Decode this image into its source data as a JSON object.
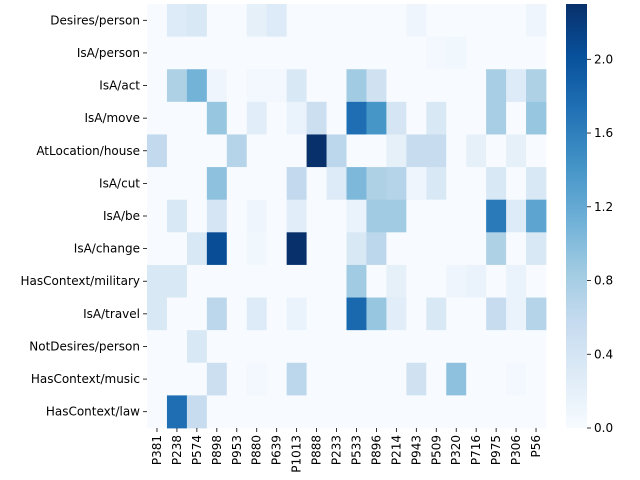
{
  "chart_data": {
    "type": "heatmap",
    "title": "",
    "xlabel": "",
    "ylabel": "",
    "columns": [
      "P381",
      "P238",
      "P574",
      "P898",
      "P953",
      "P880",
      "P639",
      "P1013",
      "P888",
      "P233",
      "P533",
      "P896",
      "P214",
      "P943",
      "P509",
      "P320",
      "P716",
      "P975",
      "P306",
      "P56"
    ],
    "rows": [
      "Desires/person",
      "IsA/person",
      "IsA/act",
      "IsA/move",
      "AtLocation/house",
      "IsA/cut",
      "IsA/be",
      "IsA/change",
      "HasContext/military",
      "IsA/travel",
      "NotDesires/person",
      "HasContext/music",
      "HasContext/law"
    ],
    "values": [
      [
        0.0,
        0.3,
        0.35,
        0.0,
        0.0,
        0.2,
        0.3,
        0.0,
        0.0,
        0.0,
        0.0,
        0.0,
        0.0,
        0.1,
        0.0,
        0.0,
        0.0,
        0.0,
        0.0,
        0.1
      ],
      [
        0.0,
        0.0,
        0.0,
        0.0,
        0.0,
        0.0,
        0.0,
        0.0,
        0.0,
        0.0,
        0.0,
        0.0,
        0.0,
        0.0,
        0.05,
        0.08,
        0.0,
        0.0,
        0.0,
        0.0
      ],
      [
        0.0,
        0.75,
        1.1,
        0.1,
        0.0,
        0.05,
        0.05,
        0.35,
        0.0,
        0.0,
        0.85,
        0.45,
        0.0,
        0.0,
        0.0,
        0.0,
        0.0,
        0.8,
        0.3,
        0.75
      ],
      [
        0.0,
        0.0,
        0.0,
        0.9,
        0.0,
        0.25,
        0.0,
        0.15,
        0.5,
        0.0,
        1.75,
        1.4,
        0.4,
        0.0,
        0.35,
        0.0,
        0.0,
        0.8,
        0.0,
        0.9
      ],
      [
        0.6,
        0.0,
        0.0,
        0.0,
        0.7,
        0.0,
        0.0,
        0.0,
        2.3,
        0.65,
        0.0,
        0.0,
        0.2,
        0.55,
        0.55,
        0.0,
        0.2,
        0.0,
        0.2,
        0.0
      ],
      [
        0.0,
        0.0,
        0.0,
        0.95,
        0.0,
        0.0,
        0.0,
        0.6,
        0.0,
        0.3,
        1.05,
        0.75,
        0.7,
        0.1,
        0.35,
        0.0,
        0.0,
        0.35,
        0.0,
        0.35
      ],
      [
        0.0,
        0.35,
        0.0,
        0.4,
        0.0,
        0.1,
        0.0,
        0.25,
        0.0,
        0.0,
        0.15,
        0.85,
        0.85,
        0.0,
        0.0,
        0.0,
        0.0,
        1.65,
        0.3,
        1.25
      ],
      [
        0.0,
        0.0,
        0.35,
        2.05,
        0.0,
        0.08,
        0.0,
        2.3,
        0.0,
        0.0,
        0.35,
        0.65,
        0.0,
        0.0,
        0.0,
        0.0,
        0.0,
        0.75,
        0.0,
        0.35
      ],
      [
        0.35,
        0.35,
        0.0,
        0.0,
        0.0,
        0.0,
        0.0,
        0.0,
        0.0,
        0.0,
        0.85,
        0.0,
        0.2,
        0.0,
        0.0,
        0.1,
        0.15,
        0.0,
        0.15,
        0.0
      ],
      [
        0.35,
        0.0,
        0.0,
        0.65,
        0.0,
        0.3,
        0.0,
        0.15,
        0.0,
        0.0,
        1.8,
        0.9,
        0.25,
        0.0,
        0.35,
        0.0,
        0.0,
        0.55,
        0.15,
        0.7
      ],
      [
        0.0,
        0.0,
        0.35,
        0.0,
        0.0,
        0.0,
        0.0,
        0.0,
        0.0,
        0.0,
        0.0,
        0.0,
        0.0,
        0.0,
        0.0,
        0.0,
        0.0,
        0.0,
        0.0,
        0.0
      ],
      [
        0.0,
        0.0,
        0.0,
        0.5,
        0.0,
        0.05,
        0.0,
        0.65,
        0.0,
        0.0,
        0.0,
        0.0,
        0.0,
        0.45,
        0.0,
        0.95,
        0.0,
        0.0,
        0.05,
        0.0
      ],
      [
        0.0,
        1.75,
        0.55,
        0.0,
        0.0,
        0.0,
        0.0,
        0.0,
        0.0,
        0.0,
        0.0,
        0.0,
        0.0,
        0.0,
        0.0,
        0.0,
        0.0,
        0.0,
        0.0,
        0.0
      ]
    ],
    "colorbar": {
      "colormap": "Blues",
      "range": [
        0.0,
        2.3
      ],
      "ticks": [
        0.0,
        0.4,
        0.8,
        1.2,
        1.6,
        2.0
      ],
      "tick_labels": [
        "0.0",
        "0.4",
        "0.8",
        "1.2",
        "1.6",
        "2.0"
      ]
    },
    "grid": false
  }
}
